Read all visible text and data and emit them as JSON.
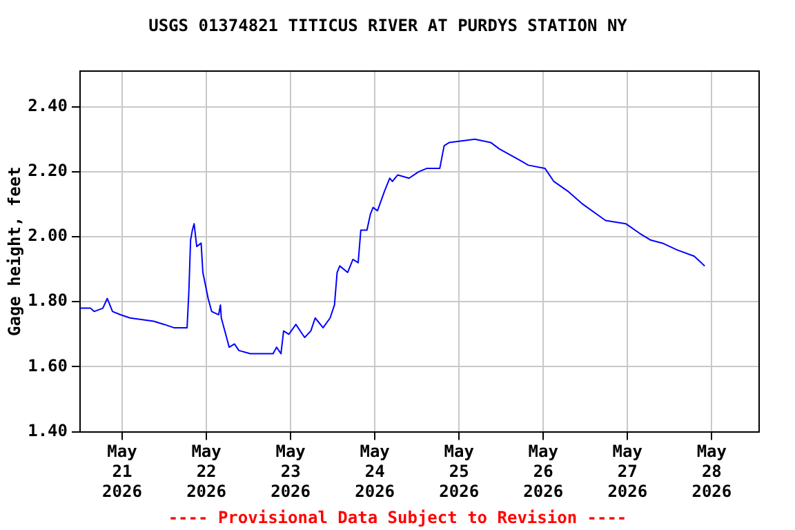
{
  "chart_data": {
    "type": "line",
    "title": "USGS 01374821 TITICUS RIVER AT PURDYS STATION NY",
    "ylabel": "Gage height, feet",
    "annotations": [
      "---- Provisional Data Subject to Revision ----"
    ],
    "x": [
      "2026-05-20T12:00",
      "2026-05-20T15:00",
      "2026-05-20T16:00",
      "2026-05-20T18:30",
      "2026-05-20T19:45",
      "2026-05-20T21:15",
      "2026-05-20T23:30",
      "2026-05-21T02:15",
      "2026-05-21T09:00",
      "2026-05-21T12:00",
      "2026-05-21T14:45",
      "2026-05-21T18:30",
      "2026-05-21T19:00",
      "2026-05-21T19:30",
      "2026-05-21T20:00",
      "2026-05-21T20:30",
      "2026-05-21T21:15",
      "2026-05-21T22:30",
      "2026-05-21T23:00",
      "2026-05-22T00:30",
      "2026-05-22T01:30",
      "2026-05-22T03:30",
      "2026-05-22T04:00",
      "2026-05-22T04:15",
      "2026-05-22T05:30",
      "2026-05-22T06:30",
      "2026-05-22T08:00",
      "2026-05-22T09:15",
      "2026-05-22T12:30",
      "2026-05-22T19:00",
      "2026-05-22T20:00",
      "2026-05-22T21:15",
      "2026-05-22T22:00",
      "2026-05-22T23:30",
      "2026-05-23T01:30",
      "2026-05-23T04:00",
      "2026-05-23T05:45",
      "2026-05-23T07:00",
      "2026-05-23T09:15",
      "2026-05-23T11:15",
      "2026-05-23T12:30",
      "2026-05-23T13:15",
      "2026-05-23T14:00",
      "2026-05-23T16:15",
      "2026-05-23T17:45",
      "2026-05-23T19:15",
      "2026-05-23T20:00",
      "2026-05-23T21:45",
      "2026-05-23T22:45",
      "2026-05-23T23:30",
      "2026-05-24T00:45",
      "2026-05-24T02:45",
      "2026-05-24T04:15",
      "2026-05-24T05:00",
      "2026-05-24T06:30",
      "2026-05-24T09:45",
      "2026-05-24T12:30",
      "2026-05-24T14:45",
      "2026-05-24T18:30",
      "2026-05-24T19:45",
      "2026-05-24T21:15",
      "2026-05-25T04:30",
      "2026-05-25T09:00",
      "2026-05-25T11:30",
      "2026-05-25T16:30",
      "2026-05-25T19:45",
      "2026-05-26T00:30",
      "2026-05-26T03:00",
      "2026-05-26T07:00",
      "2026-05-26T11:15",
      "2026-05-26T17:45",
      "2026-05-26T23:30",
      "2026-05-27T03:30",
      "2026-05-27T06:30",
      "2026-05-27T10:00",
      "2026-05-27T14:00",
      "2026-05-27T19:00",
      "2026-05-27T22:00"
    ],
    "series": [
      {
        "color": "#0000ff",
        "values": [
          1.78,
          1.78,
          1.77,
          1.78,
          1.81,
          1.77,
          1.76,
          1.75,
          1.74,
          1.73,
          1.72,
          1.72,
          1.83,
          1.99,
          2.02,
          2.04,
          1.97,
          1.98,
          1.89,
          1.81,
          1.77,
          1.76,
          1.79,
          1.75,
          1.7,
          1.66,
          1.67,
          1.65,
          1.64,
          1.64,
          1.66,
          1.64,
          1.71,
          1.7,
          1.73,
          1.69,
          1.71,
          1.75,
          1.72,
          1.75,
          1.79,
          1.89,
          1.91,
          1.89,
          1.93,
          1.92,
          2.02,
          2.02,
          2.07,
          2.09,
          2.08,
          2.14,
          2.18,
          2.17,
          2.19,
          2.18,
          2.2,
          2.21,
          2.21,
          2.28,
          2.29,
          2.3,
          2.29,
          2.27,
          2.24,
          2.22,
          2.21,
          2.17,
          2.14,
          2.1,
          2.05,
          2.04,
          2.01,
          1.99,
          1.98,
          1.96,
          1.94,
          1.91
        ]
      }
    ],
    "xlim": [
      "2026-05-20T12:00",
      "2026-05-28T13:30"
    ],
    "xticks": [
      {
        "value": "2026-05-21",
        "label": "May\n21\n2026"
      },
      {
        "value": "2026-05-22",
        "label": "May\n22\n2026"
      },
      {
        "value": "2026-05-23",
        "label": "May\n23\n2026"
      },
      {
        "value": "2026-05-24",
        "label": "May\n24\n2026"
      },
      {
        "value": "2026-05-25",
        "label": "May\n25\n2026"
      },
      {
        "value": "2026-05-26",
        "label": "May\n26\n2026"
      },
      {
        "value": "2026-05-27",
        "label": "May\n27\n2026"
      },
      {
        "value": "2026-05-28",
        "label": "May\n28\n2026"
      }
    ],
    "ylim": [
      1.4,
      2.51
    ],
    "yticks": [
      {
        "value": 1.4,
        "label": "1.40"
      },
      {
        "value": 1.6,
        "label": "1.60"
      },
      {
        "value": 1.8,
        "label": "1.80"
      },
      {
        "value": 2.0,
        "label": "2.00"
      },
      {
        "value": 2.2,
        "label": "2.20"
      },
      {
        "value": 2.4,
        "label": "2.40"
      }
    ],
    "grid": true,
    "legend": false,
    "marker": "none",
    "line_style": "solid"
  }
}
